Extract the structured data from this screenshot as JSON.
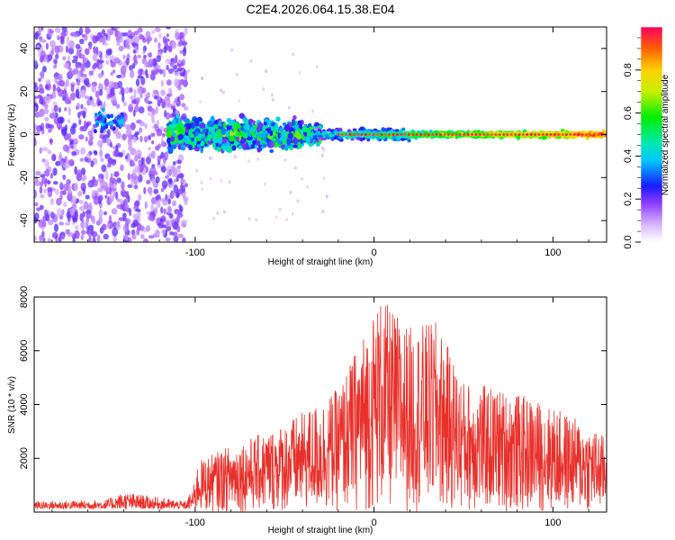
{
  "title": "C2E4.2026.064.15.38.E04",
  "chart_data": [
    {
      "type": "heatmap",
      "name": "spectrogram",
      "xlabel": "Height of straight line (km)",
      "ylabel": "Frequency (Hz)",
      "xlim": [
        -190,
        130
      ],
      "ylim": [
        -50,
        50
      ],
      "xticks": [
        -100,
        0,
        100
      ],
      "yticks": [
        -40,
        -20,
        0,
        20,
        40
      ],
      "colorbar": {
        "label": "Normalized spectral amplitude",
        "range": [
          0,
          1
        ],
        "ticks": [
          0.0,
          0.2,
          0.4,
          0.6,
          0.8
        ]
      },
      "description_regions": [
        {
          "x_from": -190,
          "x_to": -105,
          "character": "diffuse low-amplitude noise over full band"
        },
        {
          "x_from": -115,
          "x_to": -30,
          "character": "broad band about 0 Hz, width ±15 Hz, amplitude 0.2-0.5"
        },
        {
          "x_from": -30,
          "x_to": 130,
          "character": "narrow line at 0 Hz, amplitude rising to ~1.0"
        }
      ]
    },
    {
      "type": "line",
      "name": "snr",
      "xlabel": "Height of straight line (km)",
      "ylabel": "SNR (10 * v/v)",
      "xlim": [
        -190,
        130
      ],
      "ylim": [
        0,
        8000
      ],
      "xticks": [
        -100,
        0,
        100
      ],
      "yticks": [
        2000,
        4000,
        6000,
        8000
      ],
      "color": "#e8302a",
      "envelope": {
        "x": [
          -190,
          -150,
          -140,
          -105,
          -98,
          -80,
          -60,
          -40,
          -20,
          -5,
          3,
          20,
          35,
          50,
          70,
          90,
          110,
          130
        ],
        "y": [
          400,
          500,
          900,
          400,
          1900,
          2500,
          3000,
          3700,
          4600,
          6800,
          8000,
          6900,
          7100,
          4900,
          4600,
          4200,
          3600,
          2800
        ]
      }
    }
  ]
}
